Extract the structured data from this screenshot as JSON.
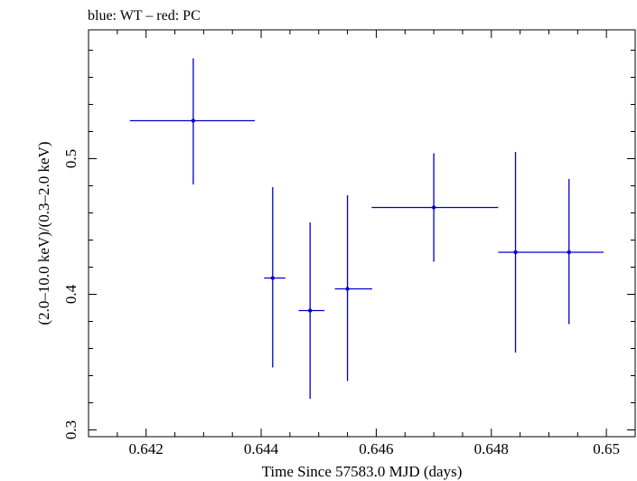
{
  "chart_data": {
    "type": "scatter",
    "title": "blue: WT – red: PC",
    "xlabel": "Time Since 57583.0 MJD (days)",
    "ylabel": "(2.0–10.0 keV)/(0.3–2.0 keV)",
    "xlim": [
      0.641,
      0.6505
    ],
    "ylim": [
      0.295,
      0.595
    ],
    "xticks": [
      0.642,
      0.644,
      0.646,
      0.648,
      0.65
    ],
    "xtick_labels": [
      "0.642",
      "0.644",
      "0.646",
      "0.648",
      "0.65"
    ],
    "yticks": [
      0.3,
      0.4,
      0.5
    ],
    "ytick_labels": [
      "0.3",
      "0.4",
      "0.5"
    ],
    "grid": false,
    "series": [
      {
        "color": "#0000cc",
        "points": [
          {
            "x": 0.64282,
            "xerr_low": 0.0011,
            "xerr_high": 0.00107,
            "y": 0.528,
            "yerr_low": 0.047,
            "yerr_high": 0.046
          },
          {
            "x": 0.6442,
            "xerr_low": 0.00015,
            "xerr_high": 0.00022,
            "y": 0.412,
            "yerr_low": 0.066,
            "yerr_high": 0.067
          },
          {
            "x": 0.64485,
            "xerr_low": 0.0002,
            "xerr_high": 0.00025,
            "y": 0.388,
            "yerr_low": 0.065,
            "yerr_high": 0.065
          },
          {
            "x": 0.6455,
            "xerr_low": 0.00022,
            "xerr_high": 0.00043,
            "y": 0.404,
            "yerr_low": 0.068,
            "yerr_high": 0.069
          },
          {
            "x": 0.647,
            "xerr_low": 0.00108,
            "xerr_high": 0.00112,
            "y": 0.464,
            "yerr_low": 0.04,
            "yerr_high": 0.04
          },
          {
            "x": 0.64842,
            "xerr_low": 0.0003,
            "xerr_high": 0.0003,
            "y": 0.431,
            "yerr_low": 0.074,
            "yerr_high": 0.074
          },
          {
            "x": 0.64935,
            "xerr_low": 0.00063,
            "xerr_high": 0.0006,
            "y": 0.431,
            "yerr_low": 0.053,
            "yerr_high": 0.054
          }
        ]
      }
    ]
  }
}
